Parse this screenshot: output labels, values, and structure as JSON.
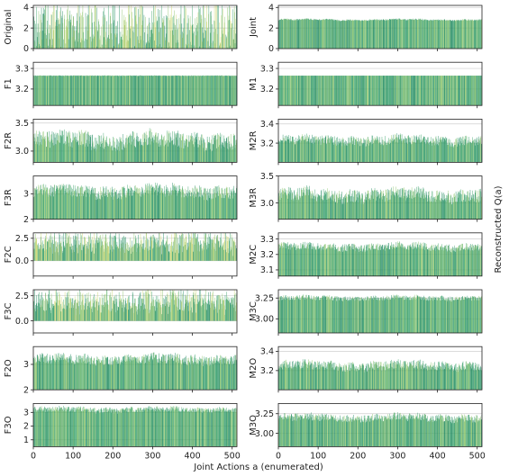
{
  "figure": {
    "xlabel": "Joint Actions a (enumerated)",
    "right_label": "Reconstructed Q(a)",
    "x_ticks": [
      0,
      100,
      200,
      300,
      400,
      500
    ],
    "x_range": [
      0,
      511
    ],
    "colors": {
      "bar_dark": "#1f8a5f",
      "bar_mid": "#3aa36b",
      "bar_light": "#8bc46a",
      "bar_yellow": "#c9d56a",
      "grid": "#cfcfcf",
      "axis": "#222222"
    }
  },
  "chart_data": [
    {
      "type": "bar",
      "name": "Original",
      "ylim": [
        0,
        4.2
      ],
      "yticks": [
        0,
        2,
        4
      ],
      "ytick_labels": [
        "0",
        "2",
        "4"
      ],
      "pattern": "spiky",
      "base": 2.0,
      "spread": 2.2
    },
    {
      "type": "bar",
      "name": "Joint",
      "ylim": [
        0,
        4.2
      ],
      "yticks": [
        0,
        2,
        4
      ],
      "ytick_labels": [
        "0",
        "2",
        "4"
      ],
      "pattern": "smooth",
      "base": 2.8,
      "spread": 0.15
    },
    {
      "type": "bar",
      "name": "F1",
      "ylim": [
        3.12,
        3.33
      ],
      "yticks": [
        3.2,
        3.3
      ],
      "ytick_labels": [
        "3.2",
        "3.3"
      ],
      "pattern": "flat",
      "base": 3.265,
      "spread": 0.003
    },
    {
      "type": "bar",
      "name": "M1",
      "ylim": [
        3.12,
        3.33
      ],
      "yticks": [
        3.2,
        3.3
      ],
      "ytick_labels": [
        "3.2",
        "3.3"
      ],
      "pattern": "flat",
      "base": 3.265,
      "spread": 0.0
    },
    {
      "type": "bar",
      "name": "F2R",
      "ylim": [
        2.8,
        3.57
      ],
      "yticks": [
        3.0,
        3.5
      ],
      "ytick_labels": [
        "3.0",
        "3.5"
      ],
      "pattern": "noisy",
      "base": 3.2,
      "spread": 0.15
    },
    {
      "type": "bar",
      "name": "M2R",
      "ylim": [
        3.0,
        3.45
      ],
      "yticks": [
        3.2,
        3.4
      ],
      "ytick_labels": [
        "3.2",
        "3.4"
      ],
      "pattern": "noisy",
      "base": 3.23,
      "spread": 0.05
    },
    {
      "type": "bar",
      "name": "F3R",
      "ylim": [
        2.0,
        3.7
      ],
      "yticks": [
        2,
        3
      ],
      "ytick_labels": [
        "2",
        "3"
      ],
      "pattern": "noisy",
      "base": 3.1,
      "spread": 0.25
    },
    {
      "type": "bar",
      "name": "M3R",
      "ylim": [
        2.7,
        3.5
      ],
      "yticks": [
        3.0,
        3.5
      ],
      "ytick_labels": [
        "3.0",
        "3.5"
      ],
      "pattern": "noisy",
      "base": 3.15,
      "spread": 0.12
    },
    {
      "type": "bar",
      "name": "F2C",
      "ylim": [
        -1.7,
        3.1
      ],
      "yticks": [
        0.0,
        2.5
      ],
      "ytick_labels": [
        "0.0",
        "2.5"
      ],
      "pattern": "spiky",
      "base": 2.0,
      "spread": 1.0
    },
    {
      "type": "bar",
      "name": "M2C",
      "ylim": [
        3.06,
        3.34
      ],
      "yticks": [
        3.1,
        3.2,
        3.3
      ],
      "ytick_labels": [
        "3.1",
        "3.2",
        "3.3"
      ],
      "pattern": "noisy",
      "base": 3.25,
      "spread": 0.025
    },
    {
      "type": "bar",
      "name": "F3C",
      "ylim": [
        -1.2,
        3.1
      ],
      "yticks": [
        0.0,
        2.5
      ],
      "ytick_labels": [
        "0.0",
        "2.5"
      ],
      "pattern": "spiky",
      "base": 2.0,
      "spread": 1.0
    },
    {
      "type": "bar",
      "name": "M3C",
      "ylim": [
        2.83,
        3.35
      ],
      "yticks": [
        3.0,
        3.25
      ],
      "ytick_labels": [
        "3.00",
        "3.25"
      ],
      "pattern": "noisy",
      "base": 3.25,
      "spread": 0.03
    },
    {
      "type": "bar",
      "name": "F2O",
      "ylim": [
        2.0,
        3.7
      ],
      "yticks": [
        2,
        3
      ],
      "ytick_labels": [
        "2",
        "3"
      ],
      "pattern": "noisy",
      "base": 3.2,
      "spread": 0.2
    },
    {
      "type": "bar",
      "name": "M2O",
      "ylim": [
        3.0,
        3.45
      ],
      "yticks": [
        3.2,
        3.4
      ],
      "ytick_labels": [
        "3.2",
        "3.4"
      ],
      "pattern": "noisy",
      "base": 3.25,
      "spread": 0.05
    },
    {
      "type": "bar",
      "name": "F3O",
      "ylim": [
        0.5,
        3.65
      ],
      "yticks": [
        1,
        2,
        3
      ],
      "ytick_labels": [
        "1",
        "2",
        "3"
      ],
      "pattern": "noisy",
      "base": 3.2,
      "spread": 0.2
    },
    {
      "type": "bar",
      "name": "M3O",
      "ylim": [
        2.83,
        3.38
      ],
      "yticks": [
        3.0,
        3.25
      ],
      "ytick_labels": [
        "3.00",
        "3.25"
      ],
      "pattern": "noisy",
      "base": 3.2,
      "spread": 0.05
    }
  ]
}
